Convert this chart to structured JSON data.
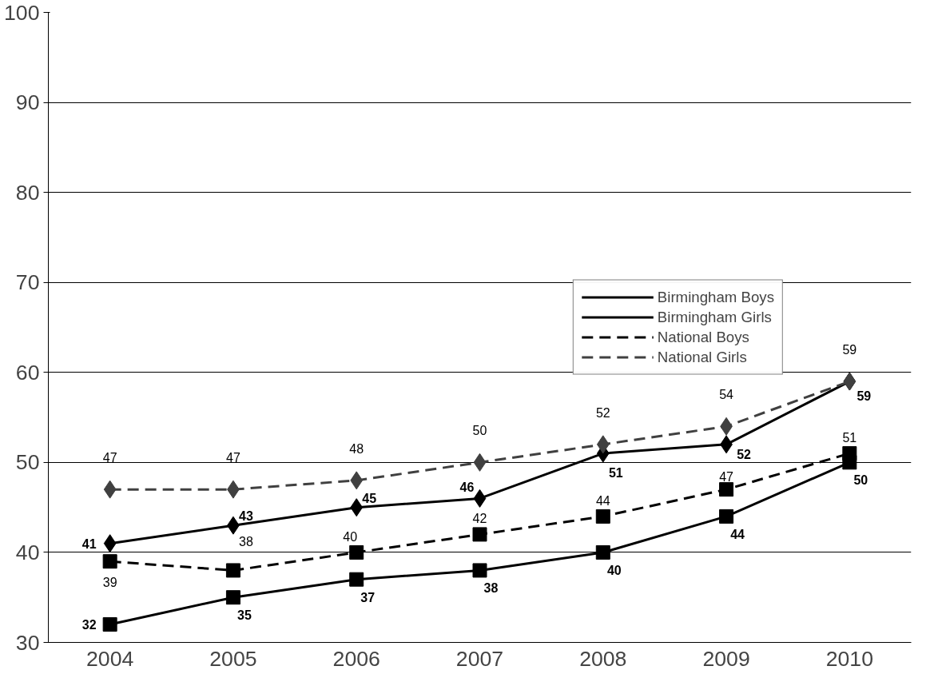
{
  "chart_data": {
    "type": "line",
    "categories": [
      "2004",
      "2005",
      "2006",
      "2007",
      "2008",
      "2009",
      "2010"
    ],
    "series": [
      {
        "name": "Birmingham Boys",
        "color": "#000000",
        "marker": "square",
        "line_style": "solid",
        "values": [
          32,
          35,
          37,
          38,
          40,
          44,
          50
        ]
      },
      {
        "name": "Birmingham Girls",
        "color": "#000000",
        "marker": "diamond",
        "line_style": "solid",
        "values": [
          41,
          43,
          45,
          46,
          51,
          52,
          59
        ]
      },
      {
        "name": "National Boys",
        "color": "#000000",
        "marker": "square",
        "line_style": "dashed",
        "values": [
          39,
          38,
          40,
          42,
          44,
          47,
          51
        ]
      },
      {
        "name": "National Girls",
        "color": "#404040",
        "marker": "diamond",
        "line_style": "dashed",
        "values": [
          47,
          47,
          48,
          50,
          52,
          54,
          59
        ]
      }
    ],
    "ylim": [
      30,
      100
    ],
    "yticks": [
      30,
      40,
      50,
      60,
      70,
      80,
      90,
      100
    ],
    "grid": "y",
    "legend": "right",
    "data_labels": true
  }
}
